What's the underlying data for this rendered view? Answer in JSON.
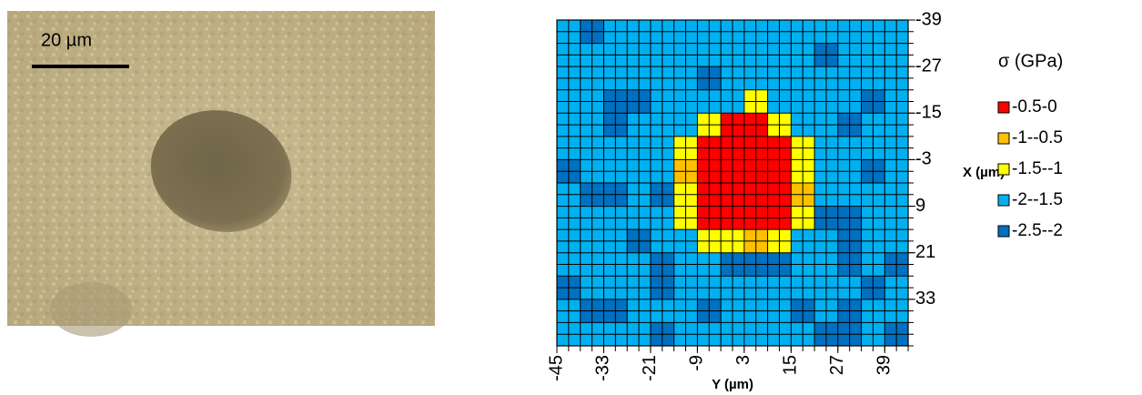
{
  "image": {
    "scale_bar_label": "20 µm"
  },
  "chart_data": {
    "type": "contour",
    "xlabel": "Y (µm)",
    "ylabel": "X (µm)",
    "legend_title": "σ (GPa)",
    "xlim": [
      -45,
      45
    ],
    "ylim": [
      -39,
      45
    ],
    "xticks": [
      -45,
      -33,
      -21,
      -9,
      3,
      15,
      27,
      39
    ],
    "yticks": [
      -39,
      -27,
      -15,
      -3,
      9,
      21,
      33
    ],
    "grid": true,
    "x": [
      -45,
      -39,
      -33,
      -27,
      -21,
      -15,
      -9,
      -3,
      3,
      9,
      15,
      21,
      27,
      33,
      39
    ],
    "y": [
      -39,
      -33,
      -27,
      -21,
      -15,
      -9,
      -3,
      3,
      9,
      15,
      21,
      27,
      33,
      39
    ],
    "levels": [
      {
        "label": "-0.5-0",
        "min": -0.5,
        "max": 0,
        "color": "#ff0000"
      },
      {
        "label": "-1--0.5",
        "min": -1,
        "max": -0.5,
        "color": "#ffc000"
      },
      {
        "label": "-1.5--1",
        "min": -1.5,
        "max": -1,
        "color": "#ffff00"
      },
      {
        "label": "-2--1.5",
        "min": -2,
        "max": -1.5,
        "color": "#00b0f0"
      },
      {
        "label": "-2.5--2",
        "min": -2.5,
        "max": -2,
        "color": "#0070c0"
      }
    ],
    "z": [
      [
        -1.8,
        -2.2,
        -1.8,
        -1.8,
        -1.8,
        -1.8,
        -1.8,
        -1.8,
        -1.8,
        -1.8,
        -1.8,
        -1.8,
        -1.8,
        -1.8,
        -1.8
      ],
      [
        -1.8,
        -1.8,
        -1.8,
        -1.8,
        -1.8,
        -1.8,
        -1.8,
        -1.8,
        -1.8,
        -1.8,
        -1.8,
        -2.2,
        -1.8,
        -1.8,
        -1.8
      ],
      [
        -1.8,
        -1.8,
        -1.8,
        -1.8,
        -1.8,
        -1.8,
        -2.2,
        -1.8,
        -1.8,
        -1.8,
        -1.8,
        -1.8,
        -1.8,
        -1.8,
        -1.8
      ],
      [
        -1.8,
        -1.8,
        -2.2,
        -2.2,
        -1.8,
        -1.8,
        -1.8,
        -1.8,
        -1.2,
        -1.8,
        -1.8,
        -1.8,
        -1.8,
        -2.2,
        -1.8
      ],
      [
        -1.8,
        -1.8,
        -2.2,
        -1.8,
        -1.8,
        -1.8,
        -1.2,
        -0.3,
        -0.3,
        -1.2,
        -1.8,
        -1.8,
        -2.2,
        -1.8,
        -1.8
      ],
      [
        -1.8,
        -1.8,
        -1.8,
        -1.8,
        -1.8,
        -1.2,
        -0.3,
        -0.3,
        -0.3,
        -0.3,
        -1.2,
        -1.8,
        -1.8,
        -1.8,
        -1.8
      ],
      [
        -2.2,
        -1.8,
        -1.8,
        -1.8,
        -1.8,
        -0.7,
        -0.3,
        -0.3,
        -0.3,
        -0.3,
        -1.2,
        -1.8,
        -1.8,
        -2.2,
        -1.8
      ],
      [
        -1.8,
        -2.2,
        -2.2,
        -1.8,
        -2.2,
        -1.2,
        -0.3,
        -0.3,
        -0.3,
        -0.3,
        -0.7,
        -1.8,
        -1.8,
        -1.8,
        -1.8
      ],
      [
        -1.8,
        -1.8,
        -1.8,
        -1.8,
        -1.8,
        -1.2,
        -0.3,
        -0.3,
        -0.3,
        -0.3,
        -1.2,
        -2.2,
        -2.2,
        -1.8,
        -1.8
      ],
      [
        -1.8,
        -1.8,
        -1.8,
        -2.2,
        -1.8,
        -1.8,
        -1.2,
        -1.2,
        -0.7,
        -1.2,
        -1.8,
        -1.8,
        -2.2,
        -1.8,
        -1.8
      ],
      [
        -1.8,
        -1.8,
        -1.8,
        -1.8,
        -2.2,
        -1.8,
        -1.8,
        -2.2,
        -2.2,
        -2.2,
        -1.8,
        -1.8,
        -2.2,
        -1.8,
        -2.2
      ],
      [
        -2.2,
        -1.8,
        -1.8,
        -1.8,
        -2.2,
        -1.8,
        -1.8,
        -1.8,
        -1.8,
        -1.8,
        -1.8,
        -1.8,
        -1.8,
        -2.2,
        -1.8
      ],
      [
        -1.8,
        -2.2,
        -2.2,
        -1.8,
        -1.8,
        -1.8,
        -2.2,
        -1.8,
        -1.8,
        -1.8,
        -2.2,
        -1.8,
        -2.2,
        -1.8,
        -1.8
      ],
      [
        -1.8,
        -1.8,
        -1.8,
        -1.8,
        -2.2,
        -1.8,
        -1.8,
        -1.8,
        -1.8,
        -1.8,
        -1.8,
        -2.2,
        -2.2,
        -1.8,
        -2.2
      ]
    ]
  }
}
